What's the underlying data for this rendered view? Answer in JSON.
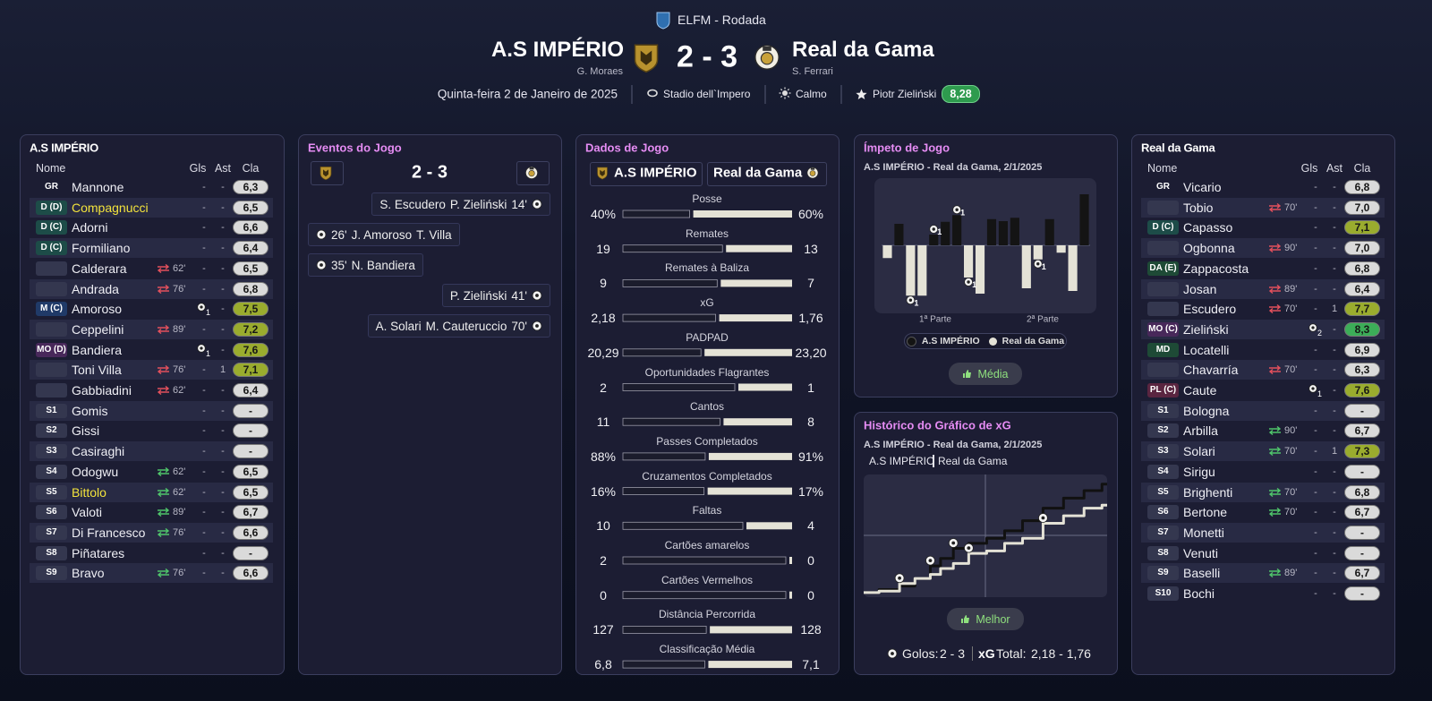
{
  "header": {
    "competition": "ELFM - Rodada",
    "home_team": "A.S IMPÉRIO",
    "home_manager": "G. Moraes",
    "score": "2 - 3",
    "away_team": "Real da Gama",
    "away_manager": "S. Ferrari",
    "date": "Quinta-feira 2 de Janeiro de 2025",
    "stadium": "Stadio dell`Impero",
    "weather": "Calmo",
    "player_of_match": "Piotr Zieliński",
    "player_of_match_rating": "8,28"
  },
  "home_lineup": {
    "title": "A.S IMPÉRIO",
    "columns": [
      "Nome",
      "Gls",
      "Ast",
      "Cla"
    ],
    "rows": [
      {
        "pos": "GR",
        "pos_color": "transparent",
        "name": "Mannone",
        "gls": "-",
        "ast": "-",
        "rating": "6,3"
      },
      {
        "pos": "D (D)",
        "pos_color": "#1d4c48",
        "name": "Compagnucci",
        "highlight": true,
        "gls": "-",
        "ast": "-",
        "rating": "6,5"
      },
      {
        "pos": "D (C)",
        "pos_color": "#1d4c48",
        "name": "Adorni",
        "gls": "-",
        "ast": "-",
        "rating": "6,6"
      },
      {
        "pos": "D (C)",
        "pos_color": "#1d4c48",
        "name": "Formiliano",
        "gls": "-",
        "ast": "-",
        "rating": "6,4"
      },
      {
        "pos": null,
        "name": "Calderara",
        "sub": {
          "dir": "off",
          "minute": "62'"
        },
        "gls": "-",
        "ast": "-",
        "rating": "6,5"
      },
      {
        "pos": null,
        "name": "Andrada",
        "sub": {
          "dir": "off",
          "minute": "76'"
        },
        "gls": "-",
        "ast": "-",
        "rating": "6,8"
      },
      {
        "pos": "M (C)",
        "pos_color": "#203a68",
        "name": "Amoroso",
        "gls": 1,
        "ast": "-",
        "rating": "7,5"
      },
      {
        "pos": null,
        "name": "Ceppelini",
        "sub": {
          "dir": "off",
          "minute": "89'"
        },
        "gls": "-",
        "ast": "-",
        "rating": "7,2"
      },
      {
        "pos": "MO (D)",
        "pos_color": "#48285a",
        "name": "Bandiera",
        "gls": 1,
        "ast": "-",
        "rating": "7,6"
      },
      {
        "pos": null,
        "name": "Toni Villa",
        "sub": {
          "dir": "off",
          "minute": "76'"
        },
        "gls": "-",
        "ast": 1,
        "rating": "7,1"
      },
      {
        "pos": null,
        "name": "Gabbiadini",
        "sub": {
          "dir": "off",
          "minute": "62'"
        },
        "gls": "-",
        "ast": "-",
        "rating": "6,4"
      },
      {
        "pos": "S1",
        "name": "Gomis",
        "gls": "-",
        "ast": "-",
        "rating": "-"
      },
      {
        "pos": "S2",
        "name": "Gissi",
        "gls": "-",
        "ast": "-",
        "rating": "-"
      },
      {
        "pos": "S3",
        "name": "Casiraghi",
        "gls": "-",
        "ast": "-",
        "rating": "-"
      },
      {
        "pos": "S4",
        "name": "Odogwu",
        "sub": {
          "dir": "on",
          "minute": "62'"
        },
        "gls": "-",
        "ast": "-",
        "rating": "6,5"
      },
      {
        "pos": "S5",
        "name": "Bittolo",
        "highlight": true,
        "sub": {
          "dir": "on",
          "minute": "62'"
        },
        "gls": "-",
        "ast": "-",
        "rating": "6,5"
      },
      {
        "pos": "S6",
        "name": "Valoti",
        "sub": {
          "dir": "on",
          "minute": "89'"
        },
        "gls": "-",
        "ast": "-",
        "rating": "6,7"
      },
      {
        "pos": "S7",
        "name": "Di Francesco",
        "sub": {
          "dir": "on",
          "minute": "76'"
        },
        "gls": "-",
        "ast": "-",
        "rating": "6,6"
      },
      {
        "pos": "S8",
        "name": "Piñatares",
        "gls": "-",
        "ast": "-",
        "rating": "-"
      },
      {
        "pos": "S9",
        "name": "Bravo",
        "sub": {
          "dir": "on",
          "minute": "76'"
        },
        "gls": "-",
        "ast": "-",
        "rating": "6,6"
      }
    ]
  },
  "away_lineup": {
    "title": "Real da Gama",
    "columns": [
      "Nome",
      "Gls",
      "Ast",
      "Cla"
    ],
    "rows": [
      {
        "pos": "GR",
        "pos_color": "transparent",
        "name": "Vicario",
        "gls": "-",
        "ast": "-",
        "rating": "6,8"
      },
      {
        "pos": null,
        "name": "Tobio",
        "sub": {
          "dir": "off",
          "minute": "70'"
        },
        "gls": "-",
        "ast": "-",
        "rating": "7,0"
      },
      {
        "pos": "D (C)",
        "pos_color": "#1d4c48",
        "name": "Capasso",
        "gls": "-",
        "ast": "-",
        "rating": "7,1"
      },
      {
        "pos": null,
        "name": "Ogbonna",
        "sub": {
          "dir": "off",
          "minute": "90'"
        },
        "gls": "-",
        "ast": "-",
        "rating": "7,0"
      },
      {
        "pos": "DA (E)",
        "pos_color": "#1e4a36",
        "name": "Zappacosta",
        "gls": "-",
        "ast": "-",
        "rating": "6,8"
      },
      {
        "pos": null,
        "name": "Josan",
        "sub": {
          "dir": "off",
          "minute": "89'"
        },
        "gls": "-",
        "ast": "-",
        "rating": "6,4"
      },
      {
        "pos": null,
        "name": "Escudero",
        "sub": {
          "dir": "off",
          "minute": "70'"
        },
        "gls": "-",
        "ast": 1,
        "rating": "7,7"
      },
      {
        "pos": "MO (C)",
        "pos_color": "#48285a",
        "name": "Zieliński",
        "gls": 2,
        "ast": "-",
        "rating": "8,3"
      },
      {
        "pos": "MD",
        "pos_color": "#1e4a36",
        "name": "Locatelli",
        "gls": "-",
        "ast": "-",
        "rating": "6,9"
      },
      {
        "pos": null,
        "name": "Chavarría",
        "sub": {
          "dir": "off",
          "minute": "70'"
        },
        "gls": "-",
        "ast": "-",
        "rating": "6,3"
      },
      {
        "pos": "PL (C)",
        "pos_color": "#5a2540",
        "name": "Caute",
        "gls": 1,
        "ast": "-",
        "rating": "7,6"
      },
      {
        "pos": "S1",
        "name": "Bologna",
        "gls": "-",
        "ast": "-",
        "rating": "-"
      },
      {
        "pos": "S2",
        "name": "Arbilla",
        "sub": {
          "dir": "on",
          "minute": "90'"
        },
        "gls": "-",
        "ast": "-",
        "rating": "6,7"
      },
      {
        "pos": "S3",
        "name": "Solari",
        "sub": {
          "dir": "on",
          "minute": "70'"
        },
        "gls": "-",
        "ast": 1,
        "rating": "7,3"
      },
      {
        "pos": "S4",
        "name": "Sirigu",
        "gls": "-",
        "ast": "-",
        "rating": "-"
      },
      {
        "pos": "S5",
        "name": "Brighenti",
        "sub": {
          "dir": "on",
          "minute": "70'"
        },
        "gls": "-",
        "ast": "-",
        "rating": "6,8"
      },
      {
        "pos": "S6",
        "name": "Bertone",
        "sub": {
          "dir": "on",
          "minute": "70'"
        },
        "gls": "-",
        "ast": "-",
        "rating": "6,7"
      },
      {
        "pos": "S7",
        "name": "Monetti",
        "gls": "-",
        "ast": "-",
        "rating": "-"
      },
      {
        "pos": "S8",
        "name": "Venuti",
        "gls": "-",
        "ast": "-",
        "rating": "-"
      },
      {
        "pos": "S9",
        "name": "Baselli",
        "sub": {
          "dir": "on",
          "minute": "89'"
        },
        "gls": "-",
        "ast": "-",
        "rating": "6,7"
      },
      {
        "pos": "S10",
        "name": "Bochi",
        "gls": "-",
        "ast": "-",
        "rating": "-"
      }
    ]
  },
  "events": {
    "title": "Eventos do Jogo",
    "items": [
      {
        "side": "away",
        "players": [
          "S. Escudero",
          "P. Zieliński"
        ],
        "minute": "14'"
      },
      {
        "side": "home",
        "players": [
          "J. Amoroso",
          "T. Villa"
        ],
        "minute": "26'"
      },
      {
        "side": "home",
        "players": [
          "N. Bandiera"
        ],
        "minute": "35'"
      },
      {
        "side": "away",
        "players": [
          "P. Zieliński"
        ],
        "minute": "41'"
      },
      {
        "side": "away",
        "players": [
          "A. Solari",
          "M. Cauteruccio"
        ],
        "minute": "70'"
      }
    ]
  },
  "stats": {
    "title": "Dados de Jogo",
    "home_color": "#1b1c2c",
    "away_color": "#e4e2d6",
    "rows": [
      {
        "label": "Posse",
        "home": 40,
        "away": 60,
        "home_label": "40%",
        "away_label": "60%"
      },
      {
        "label": "Remates",
        "home": 19,
        "away": 13
      },
      {
        "label": "Remates à Baliza",
        "home": 9,
        "away": 7
      },
      {
        "label": "xG",
        "home": 2.18,
        "away": 1.76,
        "home_label": "2,18",
        "away_label": "1,76"
      },
      {
        "label": "PADPAD",
        "home": 20.29,
        "away": 23.2,
        "home_label": "20,29",
        "away_label": "23,20"
      },
      {
        "label": "Oportunidades Flagrantes",
        "home": 2,
        "away": 1
      },
      {
        "label": "Cantos",
        "home": 11,
        "away": 8
      },
      {
        "label": "Passes Completados",
        "home": 88,
        "away": 91,
        "home_label": "88%",
        "away_label": "91%"
      },
      {
        "label": "Cruzamentos Completados",
        "home": 16,
        "away": 17,
        "home_label": "16%",
        "away_label": "17%"
      },
      {
        "label": "Faltas",
        "home": 10,
        "away": 4
      },
      {
        "label": "Cartões amarelos",
        "home": 2,
        "away": 0
      },
      {
        "label": "Cartões Vermelhos",
        "home": 0,
        "away": 0
      },
      {
        "label": "Distância Percorrida",
        "home": 127,
        "away": 128
      },
      {
        "label": "Classificação Média",
        "home": 6.8,
        "away": 7.1,
        "home_label": "6,8",
        "away_label": "7,1"
      }
    ]
  },
  "momentum": {
    "type": "bar",
    "title": "Ímpeto de Jogo",
    "subtitle": "A.S IMPÉRIO - Real da Gama, 2/1/2025",
    "values": [
      -0.19,
      0.32,
      -0.75,
      -0.75,
      0.16,
      0.35,
      0.45,
      -0.48,
      -0.72,
      0.39,
      0.36,
      0.41,
      -0.64,
      -0.21,
      0.39,
      -0.11,
      -0.68,
      0.76
    ],
    "ylim": [
      -1,
      1
    ],
    "home_color": "#141414",
    "away_color": "#e4e2d6",
    "halves": [
      "1ª Parte",
      "2ª Parte"
    ],
    "goals": [
      {
        "index": 2,
        "count": 1
      },
      {
        "index": 4,
        "count": 1
      },
      {
        "index": 6,
        "count": 1
      },
      {
        "index": 7,
        "count": 1
      },
      {
        "index": 13,
        "count": 1
      }
    ],
    "button": "Média"
  },
  "xg": {
    "type": "line",
    "title": "Histórico do Gráfico de xG",
    "subtitle": "A.S IMPÉRIO - Real da Gama, 2/1/2025",
    "x": [
      0,
      6,
      14,
      20,
      26,
      30,
      35,
      41,
      48,
      55,
      62,
      70,
      78,
      86,
      93
    ],
    "xlim": [
      0,
      95
    ],
    "ylim": [
      0,
      2.3
    ],
    "series": [
      {
        "name": "A.S IMPÉRIO",
        "color": "#111111",
        "values": [
          0.02,
          0.08,
          0.15,
          0.3,
          0.55,
          0.7,
          0.9,
          1.0,
          1.1,
          1.25,
          1.45,
          1.7,
          1.9,
          2.05,
          2.18
        ],
        "goals": [
          4,
          6
        ]
      },
      {
        "name": "Real da Gama",
        "color": "#e4e2d6",
        "values": [
          0.02,
          0.05,
          0.2,
          0.3,
          0.38,
          0.5,
          0.6,
          0.8,
          0.85,
          1.0,
          1.1,
          1.4,
          1.55,
          1.7,
          1.76
        ],
        "goals": [
          2,
          7,
          11
        ]
      }
    ],
    "button": "Melhor",
    "goals_label": "Golos:",
    "xg_label": "xG",
    "total_label": "Total:",
    "xg_total": "2,18 - 1,76"
  }
}
